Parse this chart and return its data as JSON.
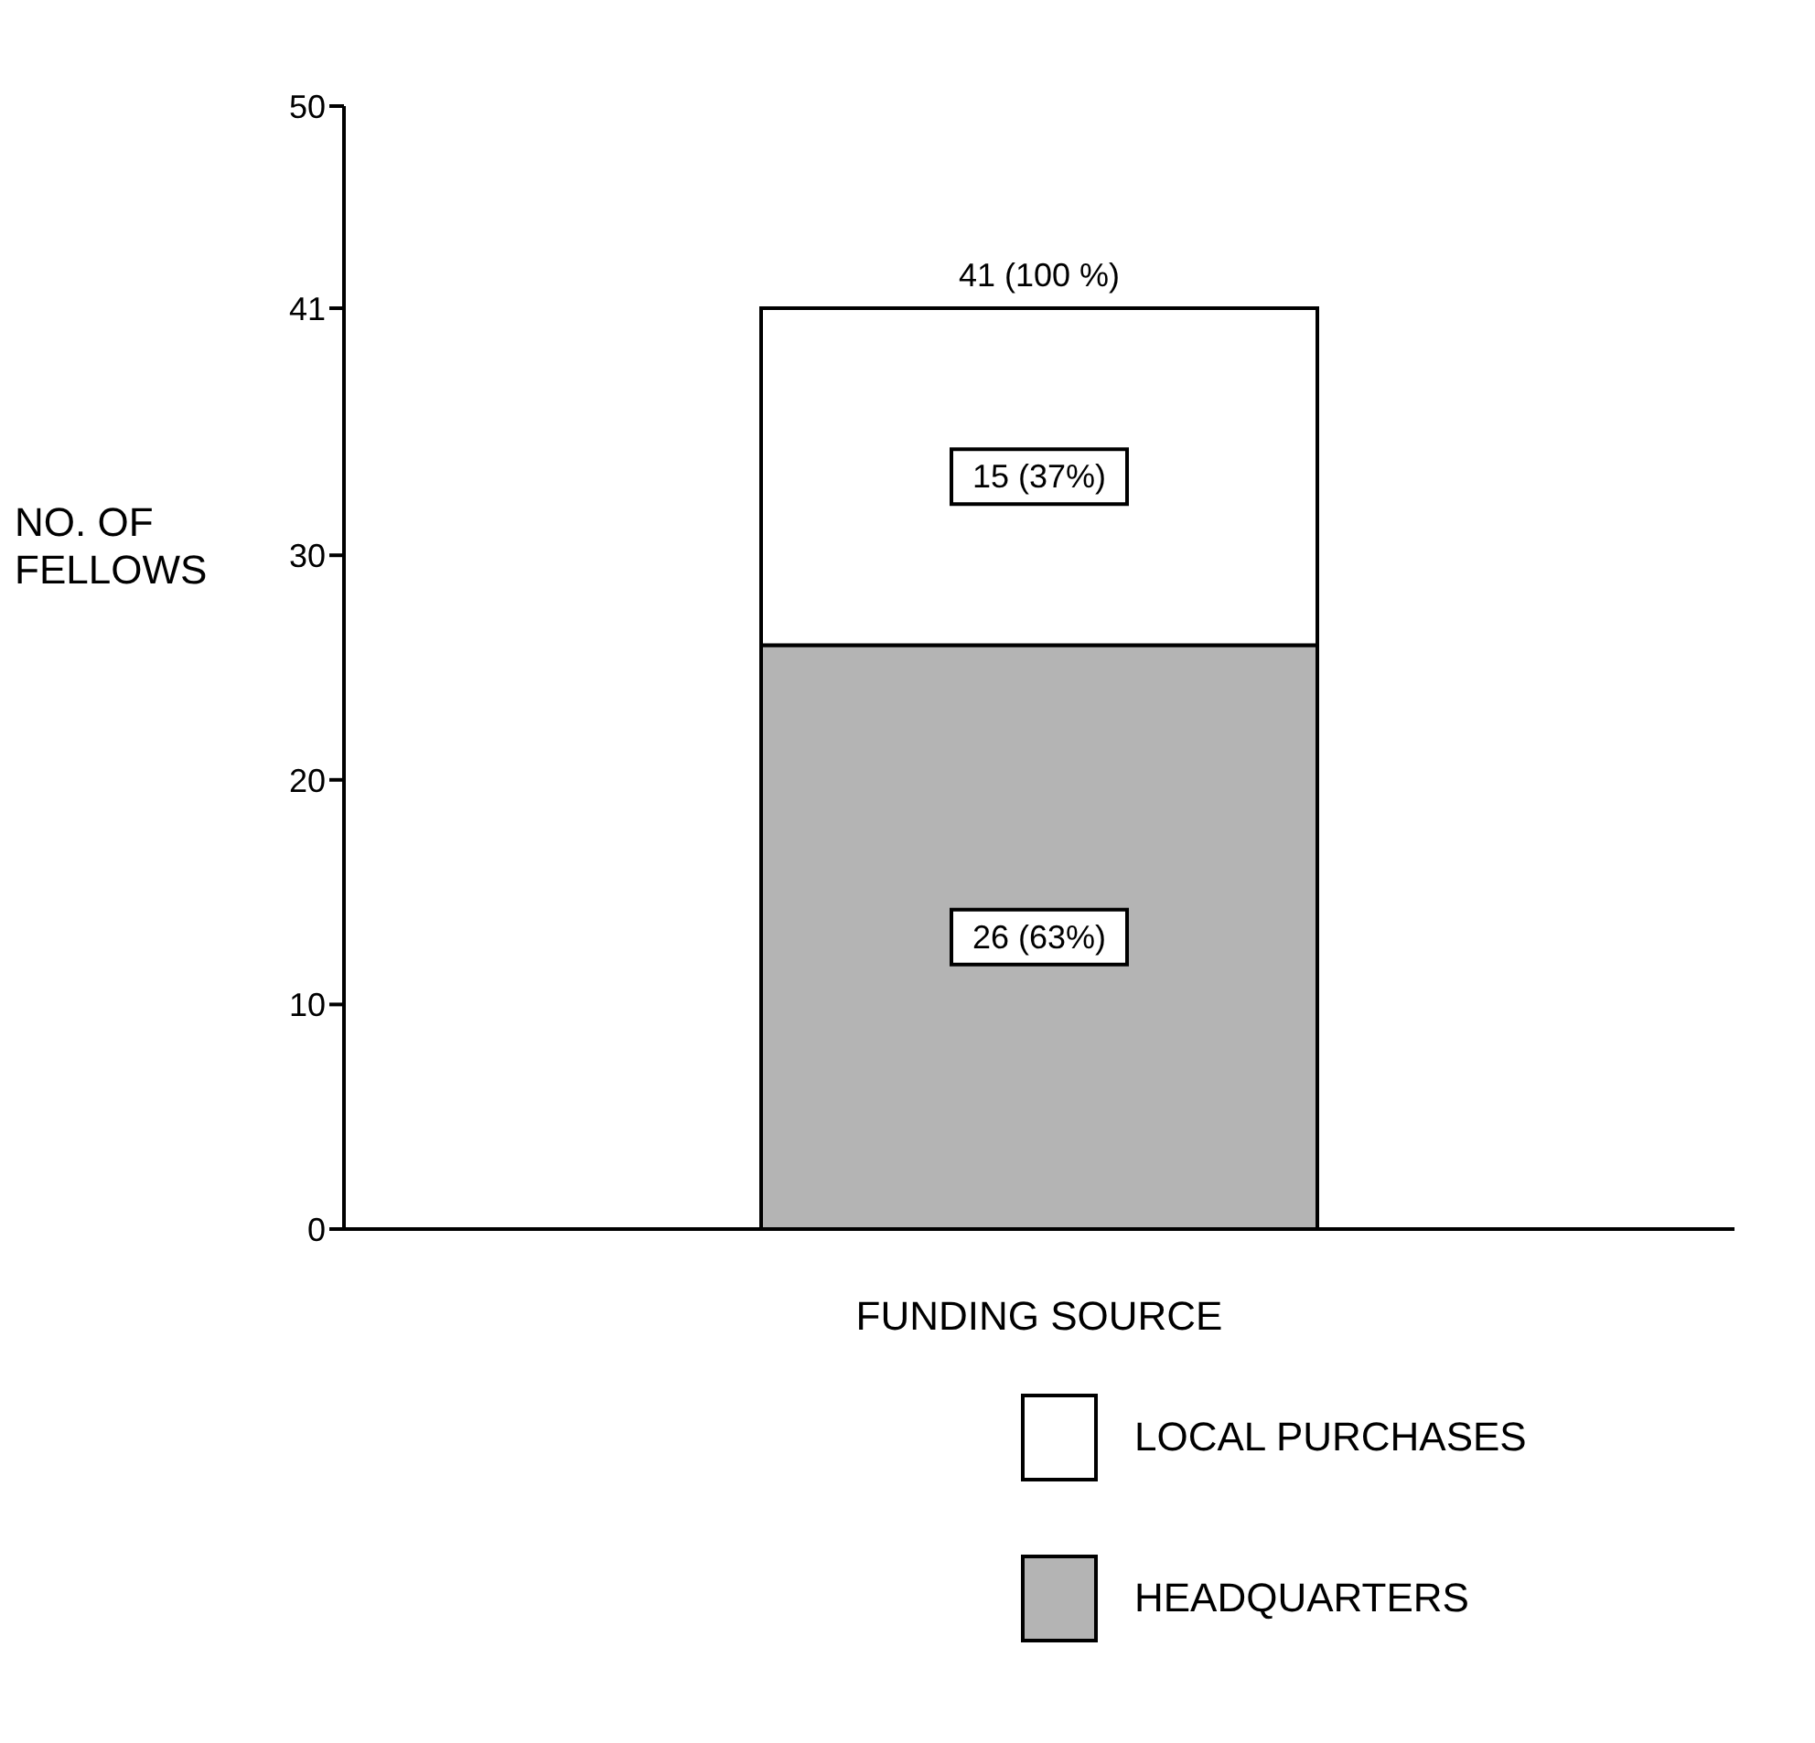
{
  "chart_data": {
    "type": "bar",
    "stacked": true,
    "xlabel": "FUNDING SOURCE",
    "ylabel": "NO. OF FELLOWS",
    "categories": [
      null
    ],
    "series": [
      {
        "name": "HEADQUARTERS",
        "color": "#b4b4b4",
        "values": [
          26
        ],
        "value_labels": [
          "26 (63%)"
        ]
      },
      {
        "name": "LOCAL PURCHASES",
        "color": "#ffffff",
        "values": [
          15
        ],
        "value_labels": [
          "15 (37%)"
        ]
      }
    ],
    "totals": [
      "41 (100 %)"
    ],
    "ylim": [
      0,
      50
    ],
    "yticks": [
      0,
      10,
      20,
      30,
      41,
      50
    ],
    "legend": "bottom"
  }
}
